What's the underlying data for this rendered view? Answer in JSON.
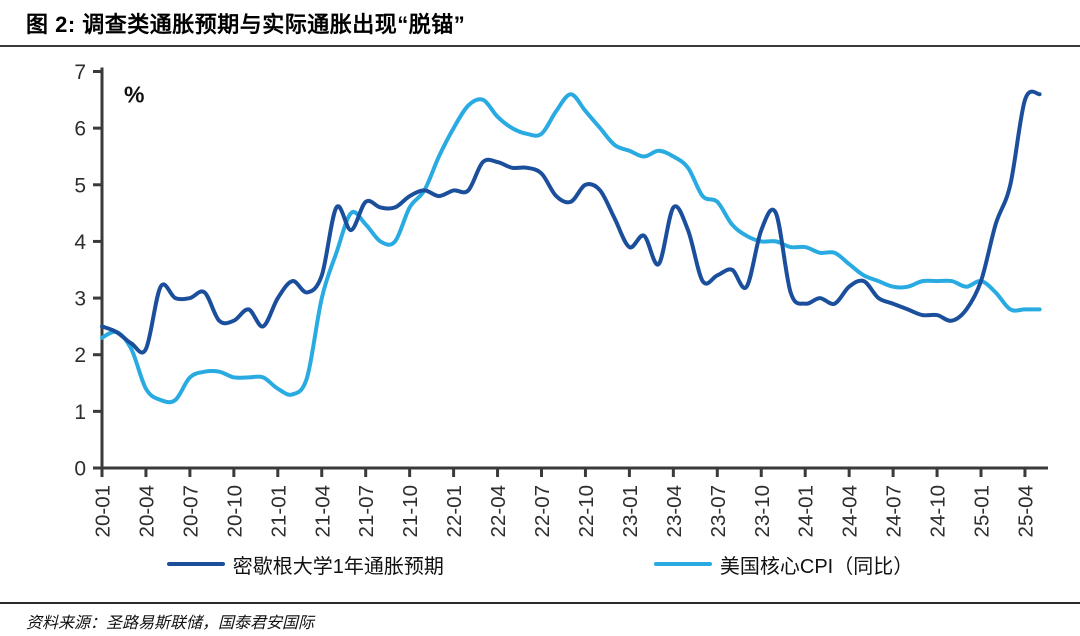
{
  "title": {
    "full": "图 2:  调查类通胀预期与实际通胀出现“脱锚”"
  },
  "source": {
    "text": "资料来源：圣路易斯联储，国泰君安国际"
  },
  "colors": {
    "axis": "#3a3a3a",
    "tick_label": "#2e2e2e",
    "series_expectations": "#1b4f9c",
    "series_core_cpi": "#29abe2"
  },
  "chart_data": {
    "type": "line",
    "title": "调查类通胀预期与实际通胀出现“脱锚”",
    "unit_label": "%",
    "xlabel": "",
    "ylabel": "%",
    "ylim": [
      0,
      7
    ],
    "yticks": [
      0,
      1,
      2,
      3,
      4,
      5,
      6,
      7
    ],
    "grid": false,
    "legend_position": "bottom",
    "x_tick_every": 3,
    "x": [
      "20-01",
      "20-02",
      "20-03",
      "20-04",
      "20-05",
      "20-06",
      "20-07",
      "20-08",
      "20-09",
      "20-10",
      "20-11",
      "20-12",
      "21-01",
      "21-02",
      "21-03",
      "21-04",
      "21-05",
      "21-06",
      "21-07",
      "21-08",
      "21-09",
      "21-10",
      "21-11",
      "21-12",
      "22-01",
      "22-02",
      "22-03",
      "22-04",
      "22-05",
      "22-06",
      "22-07",
      "22-08",
      "22-09",
      "22-10",
      "22-11",
      "22-12",
      "23-01",
      "23-02",
      "23-03",
      "23-04",
      "23-05",
      "23-06",
      "23-07",
      "23-08",
      "23-09",
      "23-10",
      "23-11",
      "23-12",
      "24-01",
      "24-02",
      "24-03",
      "24-04",
      "24-05",
      "24-06",
      "24-07",
      "24-08",
      "24-09",
      "24-10",
      "24-11",
      "24-12",
      "25-01",
      "25-02",
      "25-03",
      "25-04",
      "25-05"
    ],
    "series": [
      {
        "name": "密歇根大学1年通胀预期",
        "color": "#1b4f9c",
        "values": [
          2.5,
          2.4,
          2.2,
          2.1,
          3.2,
          3.0,
          3.0,
          3.1,
          2.6,
          2.6,
          2.8,
          2.5,
          3.0,
          3.3,
          3.1,
          3.4,
          4.6,
          4.2,
          4.7,
          4.6,
          4.6,
          4.8,
          4.9,
          4.8,
          4.9,
          4.9,
          5.4,
          5.4,
          5.3,
          5.3,
          5.2,
          4.8,
          4.7,
          5.0,
          4.9,
          4.4,
          3.9,
          4.1,
          3.6,
          4.6,
          4.2,
          3.3,
          3.4,
          3.5,
          3.2,
          4.2,
          4.5,
          3.1,
          2.9,
          3.0,
          2.9,
          3.2,
          3.3,
          3.0,
          2.9,
          2.8,
          2.7,
          2.7,
          2.6,
          2.8,
          3.3,
          4.3,
          5.0,
          6.5,
          6.6
        ]
      },
      {
        "name": "美国核心CPI（同比）",
        "color": "#29abe2",
        "values": [
          2.3,
          2.4,
          2.1,
          1.4,
          1.2,
          1.2,
          1.6,
          1.7,
          1.7,
          1.6,
          1.6,
          1.6,
          1.4,
          1.3,
          1.6,
          3.0,
          3.8,
          4.5,
          4.3,
          4.0,
          4.0,
          4.6,
          4.9,
          5.5,
          6.0,
          6.4,
          6.5,
          6.2,
          6.0,
          5.9,
          5.9,
          6.3,
          6.6,
          6.3,
          6.0,
          5.7,
          5.6,
          5.5,
          5.6,
          5.5,
          5.3,
          4.8,
          4.7,
          4.3,
          4.1,
          4.0,
          4.0,
          3.9,
          3.9,
          3.8,
          3.8,
          3.6,
          3.4,
          3.3,
          3.2,
          3.2,
          3.3,
          3.3,
          3.3,
          3.2,
          3.3,
          3.1,
          2.8,
          2.8,
          2.8
        ]
      }
    ]
  }
}
